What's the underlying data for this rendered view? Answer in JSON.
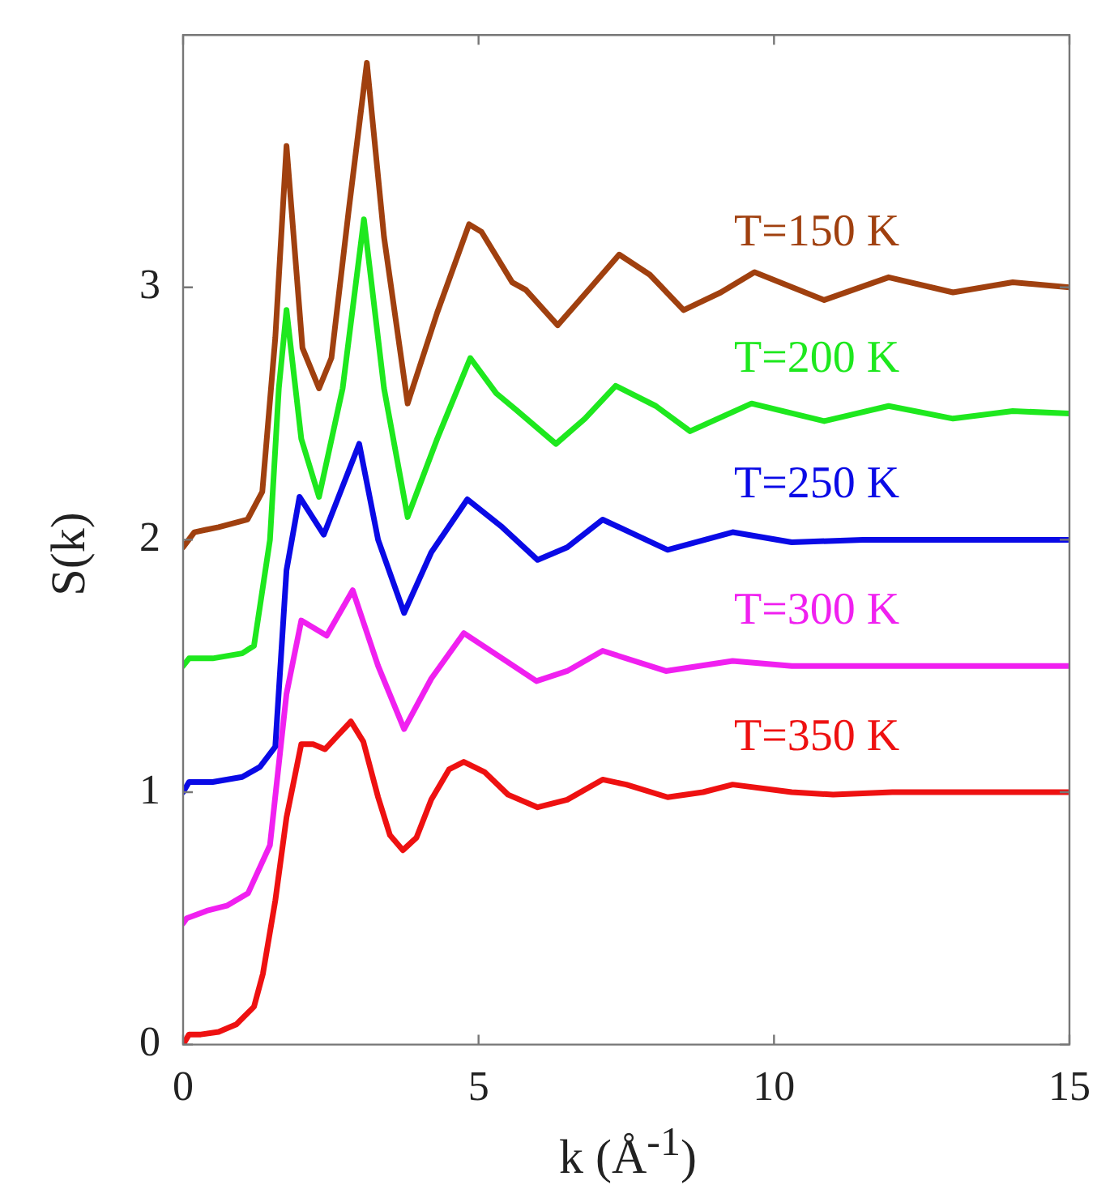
{
  "chart_data": {
    "type": "line",
    "xlabel": "k (Å$^{-1}$)",
    "ylabel": "S(k)",
    "xlim": [
      0,
      15
    ],
    "xticks": [
      0,
      5,
      10,
      15
    ],
    "ylim": [
      0,
      4
    ],
    "yticks": [
      0,
      1,
      2,
      3
    ],
    "grid": false,
    "legend": false,
    "marker": "none",
    "line_style": "solid",
    "series": [
      {
        "name": "T=150 K",
        "color": "#a0400f",
        "x": [
          0,
          0.19,
          0.6,
          1.09,
          1.34,
          1.56,
          1.75,
          2.02,
          2.3,
          2.51,
          2.8,
          3.11,
          3.4,
          3.8,
          4.3,
          4.84,
          5.05,
          5.57,
          5.8,
          6.34,
          6.9,
          7.38,
          7.9,
          8.47,
          9.1,
          9.67,
          10.85,
          11.94,
          13.03,
          14.04,
          15
        ],
        "values": [
          1.97,
          2.03,
          2.05,
          2.08,
          2.19,
          2.8,
          3.56,
          2.76,
          2.6,
          2.72,
          3.3,
          3.89,
          3.2,
          2.54,
          2.9,
          3.25,
          3.22,
          3.02,
          2.99,
          2.85,
          3.0,
          3.13,
          3.05,
          2.91,
          2.98,
          3.06,
          2.95,
          3.04,
          2.98,
          3.02,
          3.0
        ]
      },
      {
        "name": "T=200 K",
        "color": "#1ee81e",
        "x": [
          0,
          0.1,
          0.5,
          1.0,
          1.2,
          1.47,
          1.62,
          1.75,
          2.0,
          2.3,
          2.7,
          3.06,
          3.4,
          3.8,
          4.3,
          4.86,
          5.3,
          5.66,
          6.31,
          6.8,
          7.32,
          8.0,
          8.58,
          9.62,
          10.85,
          11.94,
          13.03,
          14.04,
          15
        ],
        "values": [
          1.5,
          1.53,
          1.53,
          1.55,
          1.58,
          2.0,
          2.6,
          2.91,
          2.4,
          2.17,
          2.6,
          3.27,
          2.6,
          2.09,
          2.4,
          2.72,
          2.58,
          2.51,
          2.38,
          2.48,
          2.61,
          2.53,
          2.43,
          2.54,
          2.47,
          2.53,
          2.48,
          2.51,
          2.5
        ]
      },
      {
        "name": "T=250 K",
        "color": "#0a0ae6",
        "x": [
          0,
          0.1,
          0.5,
          1.0,
          1.3,
          1.56,
          1.75,
          1.97,
          2.38,
          2.98,
          3.3,
          3.74,
          4.2,
          4.81,
          5.4,
          6.0,
          6.5,
          7.1,
          8.2,
          9.3,
          10.3,
          11.5,
          13,
          15
        ],
        "values": [
          1.0,
          1.04,
          1.04,
          1.06,
          1.1,
          1.18,
          1.88,
          2.17,
          2.02,
          2.38,
          2.0,
          1.71,
          1.95,
          2.16,
          2.05,
          1.92,
          1.97,
          2.08,
          1.96,
          2.03,
          1.99,
          2.0,
          2.0,
          2.0
        ]
      },
      {
        "name": "T=300 K",
        "color": "#f020f0",
        "x": [
          0,
          0.06,
          0.4,
          0.74,
          1.1,
          1.47,
          1.75,
          2.0,
          2.43,
          2.87,
          3.3,
          3.74,
          4.2,
          4.75,
          5.4,
          5.98,
          6.5,
          7.1,
          8.17,
          9.3,
          10.3,
          11.5,
          13,
          15
        ],
        "values": [
          0.48,
          0.5,
          0.53,
          0.55,
          0.6,
          0.79,
          1.39,
          1.68,
          1.62,
          1.8,
          1.5,
          1.25,
          1.45,
          1.63,
          1.53,
          1.44,
          1.48,
          1.56,
          1.48,
          1.52,
          1.5,
          1.5,
          1.5,
          1.5
        ]
      },
      {
        "name": "T=350 K",
        "color": "#ee1111",
        "x": [
          0,
          0.1,
          0.3,
          0.6,
          0.9,
          1.2,
          1.35,
          1.56,
          1.75,
          2.0,
          2.2,
          2.4,
          2.6,
          2.84,
          3.05,
          3.3,
          3.5,
          3.72,
          3.95,
          4.2,
          4.5,
          4.75,
          5.1,
          5.5,
          6.0,
          6.5,
          7.1,
          7.5,
          8.2,
          8.8,
          9.3,
          10.3,
          11,
          12,
          13,
          14,
          15
        ],
        "values": [
          0,
          0.04,
          0.04,
          0.05,
          0.08,
          0.15,
          0.28,
          0.57,
          0.9,
          1.19,
          1.19,
          1.17,
          1.22,
          1.28,
          1.2,
          0.98,
          0.83,
          0.77,
          0.82,
          0.97,
          1.09,
          1.12,
          1.08,
          0.99,
          0.94,
          0.97,
          1.05,
          1.03,
          0.98,
          1.0,
          1.03,
          1.0,
          0.99,
          1.0,
          1.0,
          1.0,
          1.0
        ]
      }
    ]
  }
}
